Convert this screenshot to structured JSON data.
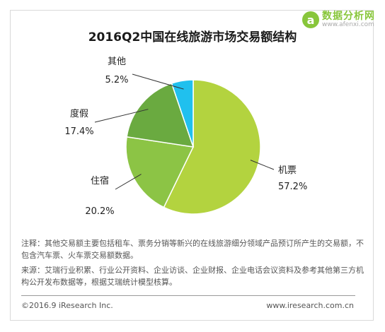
{
  "logo": {
    "mark": "a",
    "title": "数据分析网",
    "url": "www.afenxi.com"
  },
  "chart_data": {
    "type": "pie",
    "title": "2016Q2中国在线旅游市场交易额结构",
    "slices": [
      {
        "label": "机票",
        "value": 57.2,
        "display": "57.2%",
        "color": "#b3d33f"
      },
      {
        "label": "住宿",
        "value": 20.2,
        "display": "20.2%",
        "color": "#8cc445"
      },
      {
        "label": "度假",
        "value": 17.4,
        "display": "17.4%",
        "color": "#6aaa40"
      },
      {
        "label": "其他",
        "value": 5.2,
        "display": "5.2%",
        "color": "#20c0ee"
      }
    ]
  },
  "notes": {
    "line1": "注释：其他交易额主要包括租车、票务分销等新兴的在线旅游细分领域产品预订所产生的交易额，不包含汽车票、火车票交易额数据。",
    "line2": "来源：艾瑞行业积累、行业公开资料、企业访谈、企业财报、企业电话会议资料及参考其他第三方机构公开发布数据等，根据艾瑞统计模型核算。"
  },
  "footer": {
    "copyright": "©2016.9 iResearch Inc.",
    "website": "www.iresearch.com.cn"
  }
}
